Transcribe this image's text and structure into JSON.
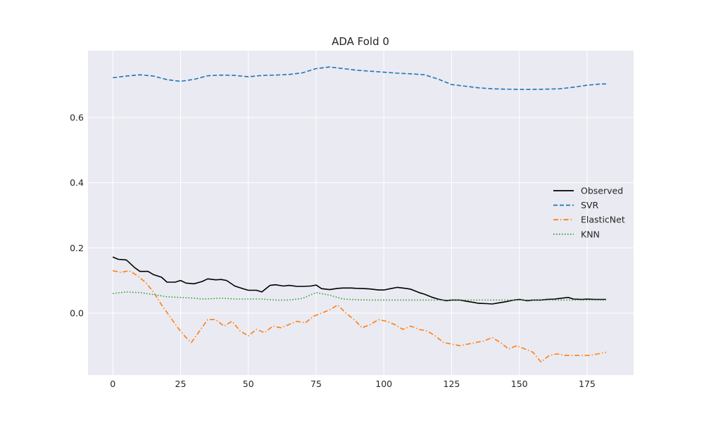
{
  "chart_data": {
    "type": "line",
    "title": "ADA Fold 0",
    "xlabel": "",
    "ylabel": "",
    "xlim": [
      -9.15,
      192.15
    ],
    "ylim": [
      -0.19,
      0.805
    ],
    "xticks": [
      0,
      25,
      50,
      75,
      100,
      125,
      150,
      175
    ],
    "yticks": [
      0.0,
      0.2,
      0.4,
      0.6
    ],
    "ytick_labels": [
      "0.0",
      "0.2",
      "0.4",
      "0.6"
    ],
    "grid": true,
    "legend_position": "center-right",
    "series": [
      {
        "name": "Observed",
        "color": "#000000",
        "dash": "solid",
        "points": [
          [
            0,
            0.172
          ],
          [
            2,
            0.165
          ],
          [
            5,
            0.163
          ],
          [
            8,
            0.14
          ],
          [
            10,
            0.128
          ],
          [
            13,
            0.128
          ],
          [
            15,
            0.118
          ],
          [
            18,
            0.11
          ],
          [
            20,
            0.095
          ],
          [
            23,
            0.095
          ],
          [
            25,
            0.1
          ],
          [
            27,
            0.092
          ],
          [
            30,
            0.09
          ],
          [
            33,
            0.097
          ],
          [
            35,
            0.105
          ],
          [
            38,
            0.102
          ],
          [
            40,
            0.103
          ],
          [
            42,
            0.1
          ],
          [
            45,
            0.083
          ],
          [
            48,
            0.075
          ],
          [
            50,
            0.07
          ],
          [
            53,
            0.07
          ],
          [
            55,
            0.065
          ],
          [
            58,
            0.085
          ],
          [
            60,
            0.087
          ],
          [
            63,
            0.083
          ],
          [
            65,
            0.085
          ],
          [
            68,
            0.082
          ],
          [
            70,
            0.082
          ],
          [
            73,
            0.083
          ],
          [
            75,
            0.086
          ],
          [
            77,
            0.075
          ],
          [
            80,
            0.072
          ],
          [
            83,
            0.076
          ],
          [
            85,
            0.077
          ],
          [
            88,
            0.077
          ],
          [
            90,
            0.076
          ],
          [
            93,
            0.075
          ],
          [
            95,
            0.074
          ],
          [
            98,
            0.071
          ],
          [
            100,
            0.071
          ],
          [
            103,
            0.076
          ],
          [
            105,
            0.079
          ],
          [
            108,
            0.076
          ],
          [
            110,
            0.073
          ],
          [
            113,
            0.063
          ],
          [
            115,
            0.058
          ],
          [
            118,
            0.048
          ],
          [
            120,
            0.043
          ],
          [
            123,
            0.038
          ],
          [
            125,
            0.04
          ],
          [
            128,
            0.04
          ],
          [
            130,
            0.037
          ],
          [
            133,
            0.033
          ],
          [
            135,
            0.03
          ],
          [
            138,
            0.029
          ],
          [
            140,
            0.028
          ],
          [
            143,
            0.032
          ],
          [
            145,
            0.035
          ],
          [
            148,
            0.04
          ],
          [
            150,
            0.042
          ],
          [
            153,
            0.038
          ],
          [
            155,
            0.04
          ],
          [
            158,
            0.04
          ],
          [
            160,
            0.042
          ],
          [
            163,
            0.043
          ],
          [
            165,
            0.045
          ],
          [
            168,
            0.048
          ],
          [
            170,
            0.043
          ],
          [
            173,
            0.042
          ],
          [
            175,
            0.043
          ],
          [
            178,
            0.042
          ],
          [
            180,
            0.042
          ],
          [
            182,
            0.042
          ]
        ]
      },
      {
        "name": "SVR",
        "color": "#1f77b4",
        "dash": "dashed",
        "points": [
          [
            0,
            0.722
          ],
          [
            5,
            0.727
          ],
          [
            10,
            0.731
          ],
          [
            15,
            0.727
          ],
          [
            20,
            0.716
          ],
          [
            25,
            0.711
          ],
          [
            30,
            0.717
          ],
          [
            35,
            0.728
          ],
          [
            40,
            0.73
          ],
          [
            45,
            0.729
          ],
          [
            50,
            0.725
          ],
          [
            55,
            0.729
          ],
          [
            60,
            0.73
          ],
          [
            65,
            0.732
          ],
          [
            70,
            0.737
          ],
          [
            75,
            0.75
          ],
          [
            80,
            0.755
          ],
          [
            85,
            0.75
          ],
          [
            90,
            0.745
          ],
          [
            95,
            0.742
          ],
          [
            100,
            0.739
          ],
          [
            105,
            0.736
          ],
          [
            110,
            0.734
          ],
          [
            115,
            0.731
          ],
          [
            120,
            0.718
          ],
          [
            125,
            0.701
          ],
          [
            130,
            0.696
          ],
          [
            135,
            0.691
          ],
          [
            140,
            0.688
          ],
          [
            145,
            0.687
          ],
          [
            150,
            0.686
          ],
          [
            155,
            0.686
          ],
          [
            160,
            0.687
          ],
          [
            165,
            0.688
          ],
          [
            170,
            0.693
          ],
          [
            175,
            0.699
          ],
          [
            180,
            0.703
          ],
          [
            182,
            0.703
          ]
        ]
      },
      {
        "name": "ElasticNet",
        "color": "#ff7f0e",
        "dash": "dashdot",
        "points": [
          [
            0,
            0.13
          ],
          [
            3,
            0.125
          ],
          [
            6,
            0.13
          ],
          [
            9,
            0.115
          ],
          [
            12,
            0.095
          ],
          [
            15,
            0.065
          ],
          [
            18,
            0.025
          ],
          [
            21,
            -0.01
          ],
          [
            24,
            -0.045
          ],
          [
            27,
            -0.075
          ],
          [
            29,
            -0.09
          ],
          [
            32,
            -0.055
          ],
          [
            35,
            -0.02
          ],
          [
            38,
            -0.02
          ],
          [
            41,
            -0.04
          ],
          [
            44,
            -0.025
          ],
          [
            47,
            -0.055
          ],
          [
            50,
            -0.07
          ],
          [
            53,
            -0.05
          ],
          [
            56,
            -0.06
          ],
          [
            59,
            -0.04
          ],
          [
            62,
            -0.045
          ],
          [
            65,
            -0.035
          ],
          [
            68,
            -0.025
          ],
          [
            71,
            -0.03
          ],
          [
            74,
            -0.01
          ],
          [
            77,
            0.0
          ],
          [
            80,
            0.01
          ],
          [
            83,
            0.025
          ],
          [
            86,
            0.0
          ],
          [
            89,
            -0.02
          ],
          [
            92,
            -0.045
          ],
          [
            95,
            -0.035
          ],
          [
            98,
            -0.02
          ],
          [
            101,
            -0.025
          ],
          [
            104,
            -0.035
          ],
          [
            107,
            -0.05
          ],
          [
            110,
            -0.04
          ],
          [
            113,
            -0.05
          ],
          [
            116,
            -0.055
          ],
          [
            119,
            -0.07
          ],
          [
            122,
            -0.09
          ],
          [
            125,
            -0.095
          ],
          [
            128,
            -0.1
          ],
          [
            131,
            -0.095
          ],
          [
            134,
            -0.09
          ],
          [
            137,
            -0.085
          ],
          [
            140,
            -0.075
          ],
          [
            143,
            -0.09
          ],
          [
            146,
            -0.11
          ],
          [
            149,
            -0.1
          ],
          [
            152,
            -0.11
          ],
          [
            155,
            -0.12
          ],
          [
            158,
            -0.15
          ],
          [
            161,
            -0.13
          ],
          [
            164,
            -0.125
          ],
          [
            167,
            -0.13
          ],
          [
            170,
            -0.13
          ],
          [
            173,
            -0.13
          ],
          [
            176,
            -0.13
          ],
          [
            179,
            -0.125
          ],
          [
            182,
            -0.12
          ]
        ]
      },
      {
        "name": "KNN",
        "color": "#2ca02c",
        "dash": "dotted",
        "points": [
          [
            0,
            0.06
          ],
          [
            5,
            0.065
          ],
          [
            10,
            0.063
          ],
          [
            15,
            0.057
          ],
          [
            20,
            0.05
          ],
          [
            25,
            0.048
          ],
          [
            30,
            0.046
          ],
          [
            33,
            0.043
          ],
          [
            36,
            0.044
          ],
          [
            40,
            0.046
          ],
          [
            45,
            0.043
          ],
          [
            50,
            0.043
          ],
          [
            55,
            0.043
          ],
          [
            60,
            0.04
          ],
          [
            65,
            0.04
          ],
          [
            70,
            0.045
          ],
          [
            75,
            0.063
          ],
          [
            80,
            0.055
          ],
          [
            85,
            0.043
          ],
          [
            90,
            0.041
          ],
          [
            95,
            0.04
          ],
          [
            100,
            0.04
          ],
          [
            110,
            0.04
          ],
          [
            120,
            0.04
          ],
          [
            130,
            0.04
          ],
          [
            140,
            0.04
          ],
          [
            150,
            0.04
          ],
          [
            160,
            0.04
          ],
          [
            170,
            0.04
          ],
          [
            182,
            0.04
          ]
        ]
      }
    ]
  }
}
